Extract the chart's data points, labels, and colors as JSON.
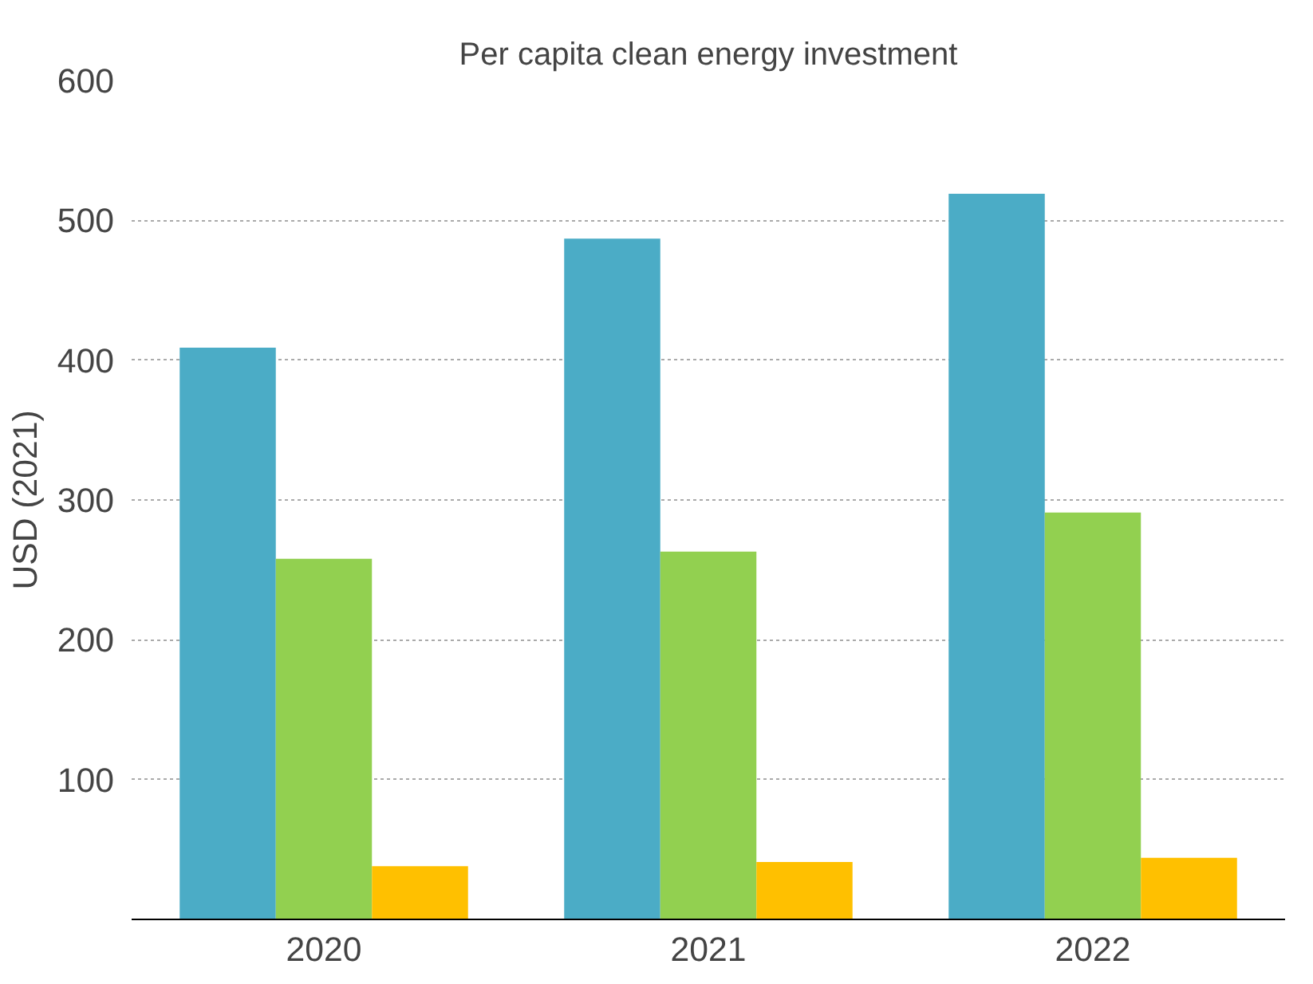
{
  "chart_data": {
    "type": "bar",
    "title": "Per capita clean energy investment",
    "ylabel": "USD (2021)",
    "categories": [
      "2020",
      "2021",
      "2022"
    ],
    "series": [
      {
        "color": "#4bacc6",
        "values": [
          409,
          487,
          519
        ]
      },
      {
        "color": "#92d050",
        "values": [
          258,
          263,
          291
        ]
      },
      {
        "color": "#ffc000",
        "values": [
          38,
          41,
          44
        ]
      }
    ],
    "ylim": [
      0,
      600
    ],
    "yticks": [
      100,
      200,
      300,
      400,
      500,
      600
    ],
    "grid": "y"
  }
}
